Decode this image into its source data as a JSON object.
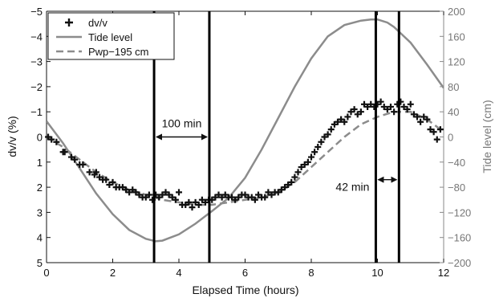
{
  "chart_data": {
    "type": "line",
    "xlabel": "Elapsed Time (hours)",
    "ylabel_left": "dv/v (%)",
    "ylabel_right": "Tide level (cm)",
    "xlim": [
      0,
      12
    ],
    "ylim_left": [
      5,
      -5
    ],
    "ylim_left_inverted": true,
    "ylim_right": [
      -200,
      200
    ],
    "x_ticks": [
      "0",
      "2",
      "4",
      "6",
      "8",
      "10",
      "12"
    ],
    "y_left_ticks": [
      "−5",
      "−4",
      "−3",
      "−2",
      "−1",
      "0",
      "1",
      "2",
      "3",
      "4",
      "5"
    ],
    "y_right_ticks": [
      "200",
      "160",
      "120",
      "80",
      "40",
      "0",
      "−40",
      "−80",
      "−120",
      "−160",
      "−200"
    ],
    "grid": false,
    "legend_position": "top-left",
    "legend": [
      {
        "name": "dv/v",
        "style": "plus-marker",
        "color": "#111111"
      },
      {
        "name": "Tide level",
        "style": "solid",
        "color": "#8c8c8c"
      },
      {
        "name": "Pwp−195 cm",
        "style": "dashed",
        "color": "#8c8c8c"
      }
    ],
    "vertical_lines_x": [
      3.25,
      4.92,
      9.95,
      10.65
    ],
    "annotations": [
      {
        "text": "100 min",
        "x_from": 3.25,
        "x_to": 4.92,
        "y_left": 0
      },
      {
        "text": "42 min",
        "x_from": 9.95,
        "x_to": 10.65,
        "y_left": 1.7
      }
    ],
    "series": [
      {
        "name": "dv/v",
        "axis": "left",
        "x": [
          0.05,
          0.15,
          0.3,
          0.5,
          0.55,
          0.75,
          0.85,
          1.0,
          1.1,
          1.3,
          1.45,
          1.5,
          1.6,
          1.7,
          1.8,
          1.9,
          2.0,
          2.1,
          2.2,
          2.3,
          2.4,
          2.5,
          2.6,
          2.7,
          2.8,
          2.9,
          3.0,
          3.1,
          3.2,
          3.3,
          3.4,
          3.5,
          3.6,
          3.7,
          3.8,
          3.9,
          4.0,
          4.1,
          4.2,
          4.3,
          4.4,
          4.5,
          4.6,
          4.7,
          4.8,
          4.9,
          5.0,
          5.1,
          5.2,
          5.3,
          5.4,
          5.5,
          5.6,
          5.7,
          5.8,
          5.9,
          6.0,
          6.1,
          6.2,
          6.3,
          6.4,
          6.5,
          6.6,
          6.7,
          6.8,
          6.9,
          7.0,
          7.1,
          7.2,
          7.3,
          7.4,
          7.5,
          7.6,
          7.7,
          7.8,
          7.9,
          8.0,
          8.1,
          8.2,
          8.3,
          8.4,
          8.5,
          8.6,
          8.7,
          8.8,
          8.9,
          9.0,
          9.1,
          9.2,
          9.3,
          9.4,
          9.5,
          9.6,
          9.7,
          9.8,
          9.9,
          10.0,
          10.1,
          10.2,
          10.3,
          10.4,
          10.5,
          10.6,
          10.7,
          10.8,
          10.9,
          11.0,
          11.1,
          11.2,
          11.3,
          11.4,
          11.5,
          11.6,
          11.7,
          11.8,
          11.9
        ],
        "values": [
          0.0,
          0.1,
          0.2,
          0.6,
          0.6,
          0.8,
          0.9,
          1.1,
          1.1,
          1.4,
          1.5,
          1.4,
          1.6,
          1.7,
          1.7,
          1.9,
          1.8,
          2.0,
          2.0,
          2.0,
          2.1,
          2.2,
          2.1,
          2.2,
          2.3,
          2.4,
          2.4,
          2.3,
          2.5,
          2.3,
          2.4,
          2.3,
          2.2,
          2.3,
          2.4,
          2.5,
          2.2,
          2.7,
          2.7,
          2.6,
          2.8,
          2.6,
          2.7,
          2.5,
          2.6,
          2.5,
          2.5,
          2.4,
          2.3,
          2.4,
          2.3,
          2.4,
          2.4,
          2.5,
          2.4,
          2.3,
          2.3,
          2.4,
          2.4,
          2.5,
          2.3,
          2.4,
          2.4,
          2.2,
          2.3,
          2.2,
          2.2,
          2.1,
          2.0,
          1.9,
          1.8,
          1.6,
          1.4,
          1.2,
          1.1,
          1.0,
          0.8,
          0.6,
          0.4,
          0.2,
          0.0,
          -0.1,
          -0.3,
          -0.5,
          -0.6,
          -0.7,
          -0.6,
          -0.8,
          -1.0,
          -1.1,
          -0.9,
          -1.0,
          -1.3,
          -1.2,
          -1.3,
          -1.2,
          -1.3,
          -1.4,
          -1.2,
          -1.1,
          -1.2,
          -1.0,
          -1.3,
          -1.4,
          -1.2,
          -1.1,
          -1.3,
          -0.9,
          -0.8,
          -0.6,
          -0.8,
          -0.7,
          -0.3,
          -0.2,
          0.1,
          -0.3
        ]
      },
      {
        "name": "Tide level",
        "axis": "right",
        "x": [
          0,
          0.5,
          1.0,
          1.5,
          2.0,
          2.5,
          3.0,
          3.3,
          3.5,
          4.0,
          4.5,
          5.0,
          5.5,
          6.0,
          6.5,
          7.0,
          7.5,
          8.0,
          8.5,
          9.0,
          9.5,
          9.8,
          10.0,
          10.3,
          10.5,
          11.0,
          11.5,
          12.0
        ],
        "values": [
          25,
          -10,
          -50,
          -90,
          -123,
          -148,
          -162,
          -166,
          -165,
          -155,
          -138,
          -118,
          -97,
          -65,
          -20,
          30,
          80,
          125,
          160,
          178,
          185,
          187,
          187,
          182,
          175,
          150,
          115,
          78
        ]
      },
      {
        "name": "Pwp−195 cm",
        "axis": "left",
        "x": [
          0,
          0.5,
          1.0,
          1.5,
          2.0,
          2.5,
          3.0,
          3.5,
          4.0,
          4.5,
          5.0,
          5.5,
          6.0,
          6.5,
          7.0,
          7.5,
          8.0,
          8.5,
          9.0,
          9.5,
          10.0,
          10.5,
          11.0,
          11.5,
          12.0
        ],
        "values": [
          0.0,
          0.4,
          0.9,
          1.4,
          1.8,
          2.1,
          2.3,
          2.5,
          2.6,
          2.7,
          2.7,
          2.6,
          2.5,
          2.4,
          2.2,
          1.8,
          1.2,
          0.6,
          0.0,
          -0.5,
          -0.8,
          -1.0,
          -1.0,
          -0.7,
          -0.2
        ]
      }
    ]
  }
}
